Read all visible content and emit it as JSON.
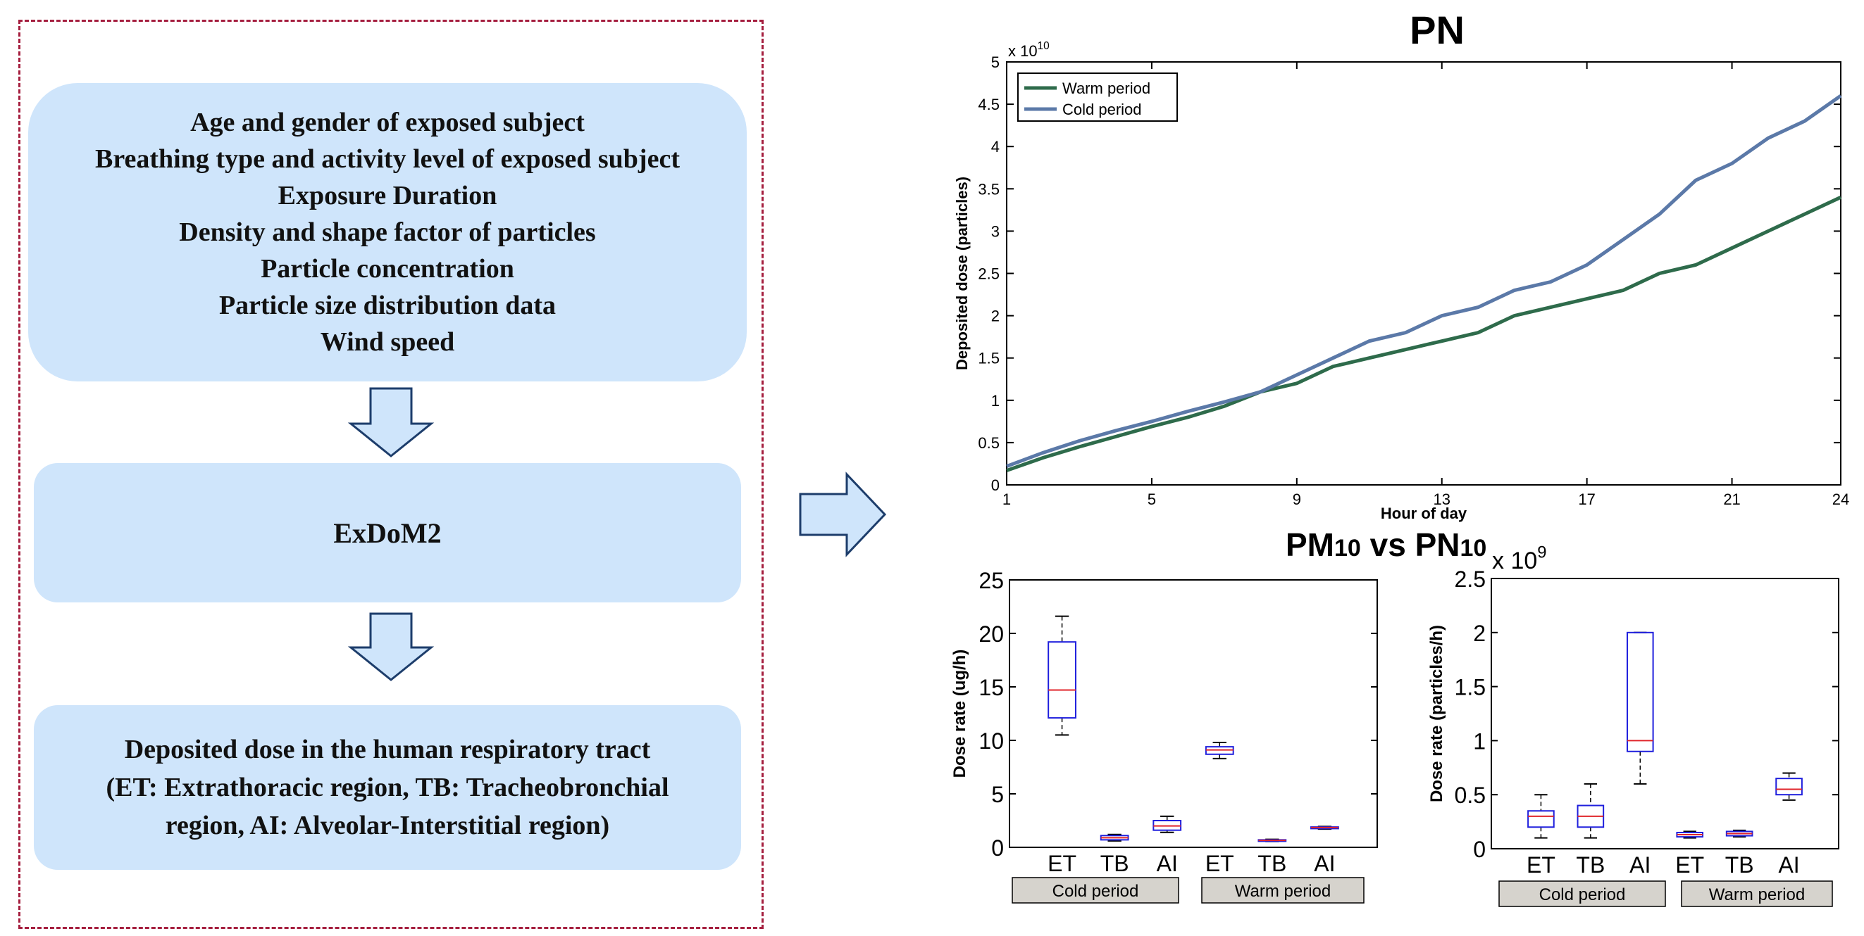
{
  "flow": {
    "inputs": [
      "Age and gender of exposed subject",
      "Breathing type and activity level of exposed subject",
      "Exposure Duration",
      "Density and shape factor of particles",
      "Particle concentration",
      "Particle size distribution data",
      "Wind speed"
    ],
    "model": "ExDoM2",
    "output": [
      "Deposited dose in the human respiratory tract",
      "(ET: Extrathoracic region, TB: Tracheobronchial",
      "region,  AI: Alveolar-Interstitial region)"
    ]
  },
  "colors": {
    "box_fill": "#cfe5fb",
    "frame_border": "#a51f3f",
    "warm_line": "#2e6b4b",
    "cold_line": "#5b79a8",
    "box_outline": "#1f1fdd",
    "median": "#e0242a",
    "group_label_fill": "#d6d3cd"
  },
  "chart_data": [
    {
      "type": "line",
      "title": "PN",
      "xlabel": "Hour of day",
      "ylabel": "Deposited dose (particles)",
      "y_multiplier": "x 10",
      "y_exponent": "10",
      "xlim": [
        1,
        24
      ],
      "ylim": [
        0,
        5
      ],
      "x_ticks": [
        "1",
        "5",
        "9",
        "13",
        "17",
        "21",
        "24"
      ],
      "y_ticks": [
        "0",
        "0.5",
        "1",
        "1.5",
        "2",
        "2.5",
        "3",
        "3.5",
        "4",
        "4.5",
        "5"
      ],
      "legend_position": "top-left",
      "x": [
        1,
        2,
        3,
        4,
        5,
        6,
        7,
        8,
        9,
        10,
        11,
        12,
        13,
        14,
        15,
        16,
        17,
        18,
        19,
        20,
        21,
        22,
        23,
        24
      ],
      "series": [
        {
          "name": "Warm period",
          "color": "#2e6b4b",
          "values": [
            0.17,
            0.32,
            0.45,
            0.57,
            0.69,
            0.8,
            0.93,
            1.1,
            1.2,
            1.4,
            1.5,
            1.6,
            1.7,
            1.8,
            2.0,
            2.1,
            2.2,
            2.3,
            2.5,
            2.6,
            2.8,
            3.0,
            3.2,
            3.4
          ]
        },
        {
          "name": "Cold period",
          "color": "#5b79a8",
          "values": [
            0.22,
            0.38,
            0.52,
            0.64,
            0.75,
            0.87,
            0.98,
            1.1,
            1.3,
            1.5,
            1.7,
            1.8,
            2.0,
            2.1,
            2.3,
            2.4,
            2.6,
            2.9,
            3.2,
            3.6,
            3.8,
            4.1,
            4.3,
            4.6
          ]
        }
      ]
    },
    {
      "type": "box",
      "title": "PM10 vs PN10",
      "ylabel": "Dose rate (ug/h)",
      "ylim": [
        0,
        25
      ],
      "y_ticks": [
        "0",
        "5",
        "10",
        "15",
        "20",
        "25"
      ],
      "categories": [
        "ET",
        "TB",
        "AI",
        "ET",
        "TB",
        "AI"
      ],
      "groups": [
        "Cold period",
        "Warm period"
      ],
      "boxes": [
        {
          "min": 10.5,
          "q1": 12.1,
          "median": 14.7,
          "q3": 19.2,
          "max": 21.6
        },
        {
          "min": 0.6,
          "q1": 0.7,
          "median": 0.9,
          "q3": 1.1,
          "max": 1.2
        },
        {
          "min": 1.4,
          "q1": 1.6,
          "median": 2.0,
          "q3": 2.5,
          "max": 2.9
        },
        {
          "min": 8.3,
          "q1": 8.7,
          "median": 9.1,
          "q3": 9.4,
          "max": 9.8
        },
        {
          "min": 0.55,
          "q1": 0.6,
          "median": 0.65,
          "q3": 0.7,
          "max": 0.75
        },
        {
          "min": 1.7,
          "q1": 1.75,
          "median": 1.85,
          "q3": 1.9,
          "max": 1.95
        }
      ]
    },
    {
      "type": "box",
      "title": "",
      "ylabel": "Dose rate (particles/h)",
      "y_multiplier": "x 10",
      "y_exponent": "9",
      "ylim": [
        0,
        2.5
      ],
      "y_ticks": [
        "0",
        "0.5",
        "1",
        "1.5",
        "2",
        "2.5"
      ],
      "categories": [
        "ET",
        "TB",
        "AI",
        "ET",
        "TB",
        "AI"
      ],
      "groups": [
        "Cold period",
        "Warm period"
      ],
      "boxes": [
        {
          "min": 0.1,
          "q1": 0.2,
          "median": 0.3,
          "q3": 0.35,
          "max": 0.5
        },
        {
          "min": 0.1,
          "q1": 0.2,
          "median": 0.3,
          "q3": 0.4,
          "max": 0.6
        },
        {
          "min": 0.6,
          "q1": 0.9,
          "median": 1.0,
          "q3": 2.0,
          "max": 2.0
        },
        {
          "min": 0.1,
          "q1": 0.11,
          "median": 0.13,
          "q3": 0.15,
          "max": 0.16
        },
        {
          "min": 0.11,
          "q1": 0.12,
          "median": 0.14,
          "q3": 0.16,
          "max": 0.17
        },
        {
          "min": 0.45,
          "q1": 0.5,
          "median": 0.55,
          "q3": 0.65,
          "max": 0.7
        }
      ]
    }
  ]
}
